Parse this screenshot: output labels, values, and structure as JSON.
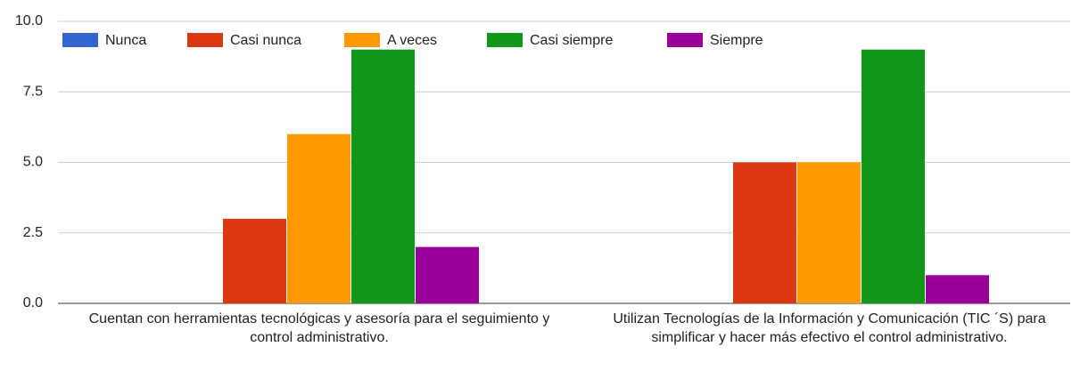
{
  "chart_data": {
    "type": "bar",
    "categories": [
      "Cuentan con herramientas tecnológicas y asesoría para el seguimiento y control administrativo.",
      "Utilizan Tecnologías de la Información y Comunicación (TIC ´S) para simplificar y hacer más efectivo el control administrativo."
    ],
    "series": [
      {
        "name": "Nunca",
        "color": "#3366cc",
        "values": [
          0,
          0
        ]
      },
      {
        "name": "Casi nunca",
        "color": "#dc3912",
        "values": [
          3,
          5
        ]
      },
      {
        "name": "A veces",
        "color": "#ff9900",
        "values": [
          6,
          5
        ]
      },
      {
        "name": "Casi siempre",
        "color": "#109618",
        "values": [
          9,
          9
        ]
      },
      {
        "name": "Siempre",
        "color": "#990099",
        "values": [
          2,
          1
        ]
      }
    ],
    "ylim": [
      0,
      10
    ],
    "yticks": [
      {
        "value": 0,
        "label": "0.0"
      },
      {
        "value": 2.5,
        "label": "2.5"
      },
      {
        "value": 5,
        "label": "5.0"
      },
      {
        "value": 7.5,
        "label": "7.5"
      },
      {
        "value": 10,
        "label": "10.0"
      }
    ],
    "grid": true,
    "legend": "top"
  }
}
